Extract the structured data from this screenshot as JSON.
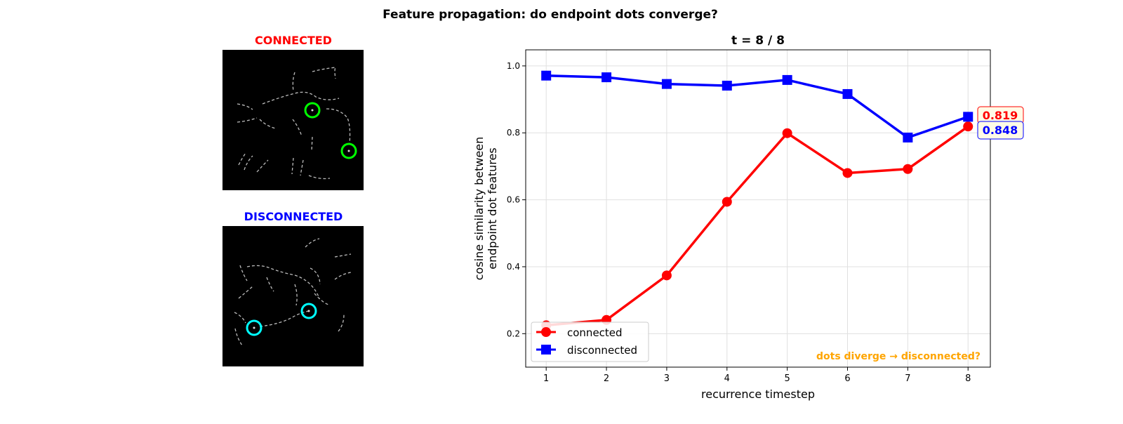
{
  "suptitle": "Feature propagation: do endpoint dots converge?",
  "panels": {
    "connected": {
      "title": "CONNECTED",
      "title_color": "#ff0000",
      "marker_color": "#00ff00"
    },
    "disconnected": {
      "title": "DISCONNECTED",
      "title_color": "#0000ff",
      "marker_color": "#00ffff"
    }
  },
  "chart_data": {
    "type": "line",
    "title": "t = 8 / 8",
    "xlabel": "recurrence timestep",
    "ylabel": [
      "cosine similarity between",
      "endpoint dot features"
    ],
    "x": [
      1,
      2,
      3,
      4,
      5,
      6,
      7,
      8
    ],
    "xticks": [
      "1",
      "2",
      "3",
      "4",
      "5",
      "6",
      "7",
      "8"
    ],
    "yticks": [
      "0.2",
      "0.4",
      "0.6",
      "0.8",
      "1.0"
    ],
    "xlim": [
      0.66,
      8.37
    ],
    "ylim": [
      0.1,
      1.048
    ],
    "grid": true,
    "legend_position": "lower-left",
    "series": [
      {
        "name": "connected",
        "color": "#ff0000",
        "marker": "circle",
        "values": [
          0.225,
          0.241,
          0.374,
          0.594,
          0.799,
          0.68,
          0.692,
          0.819
        ]
      },
      {
        "name": "disconnected",
        "color": "#0000ff",
        "marker": "square",
        "values": [
          0.971,
          0.966,
          0.946,
          0.941,
          0.958,
          0.916,
          0.786,
          0.848
        ]
      }
    ],
    "end_labels": [
      "0.819",
      "0.848"
    ],
    "annotation": "dots diverge → disconnected?",
    "annotation_color": "#ffa500"
  }
}
